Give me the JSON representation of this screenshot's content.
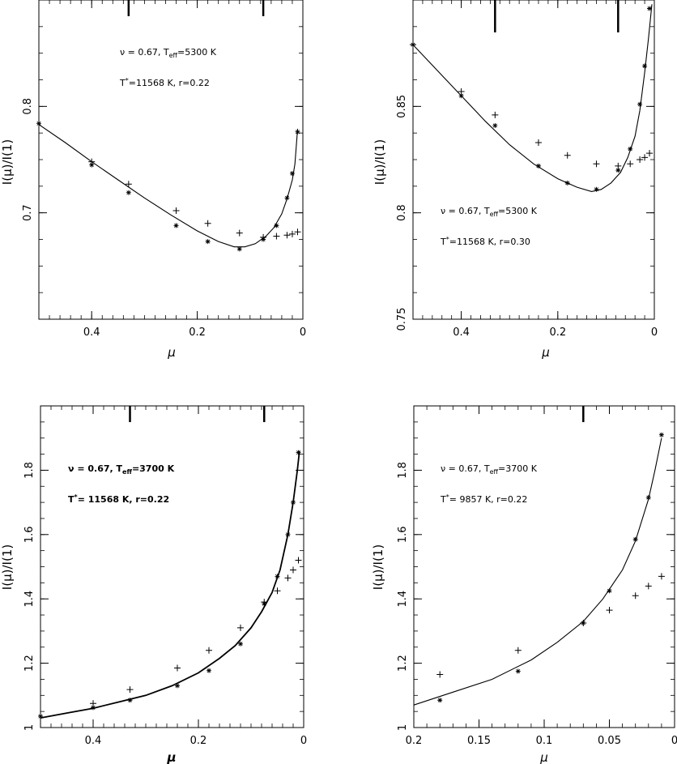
{
  "chart_data": [
    {
      "type": "scatter",
      "xlabel": "μ",
      "ylabel": "I(μ)/I(1)",
      "xlim": [
        0.5,
        0
      ],
      "ylim": [
        0.6,
        0.9
      ],
      "xticks": [
        "0.4",
        "0.2",
        "0"
      ],
      "yticks": [
        "0.7",
        "0.8"
      ],
      "annotations": [
        "ν  = 0.67, T_eff=5300 K",
        "T*=11568 K, r=0.22"
      ],
      "vertical_markers_x": [
        0.33,
        0.075
      ],
      "series": [
        {
          "marker": "curve",
          "x": [
            0.5,
            0.45,
            0.4,
            0.35,
            0.3,
            0.25,
            0.2,
            0.16,
            0.13,
            0.11,
            0.09,
            0.07,
            0.055,
            0.04,
            0.03,
            0.02,
            0.015,
            0.01
          ],
          "y": [
            0.783,
            0.766,
            0.748,
            0.731,
            0.714,
            0.698,
            0.683,
            0.673,
            0.668,
            0.668,
            0.671,
            0.678,
            0.686,
            0.699,
            0.713,
            0.731,
            0.746,
            0.779
          ]
        },
        {
          "marker": "asterisk",
          "x": [
            0.5,
            0.4,
            0.33,
            0.24,
            0.18,
            0.12,
            0.075,
            0.05,
            0.03,
            0.02,
            0.01
          ],
          "y": [
            0.784,
            0.745,
            0.719,
            0.688,
            0.673,
            0.666,
            0.675,
            0.688,
            0.714,
            0.737,
            0.776
          ]
        },
        {
          "marker": "plus",
          "x": [
            0.4,
            0.33,
            0.24,
            0.18,
            0.12,
            0.075,
            0.05,
            0.03,
            0.02,
            0.01
          ],
          "y": [
            0.748,
            0.727,
            0.702,
            0.69,
            0.681,
            0.677,
            0.678,
            0.679,
            0.68,
            0.682
          ]
        }
      ]
    },
    {
      "type": "scatter",
      "xlabel": "μ",
      "ylabel": "I(μ)/I(1)",
      "xlim": [
        0.5,
        0
      ],
      "ylim": [
        0.75,
        0.9
      ],
      "xticks": [
        "0.4",
        "0.2",
        "0"
      ],
      "yticks": [
        "0.75",
        "0.8",
        "0.85"
      ],
      "annotations": [
        "ν  = 0.67, T_eff=5300 K",
        "T*=11568 K, r=0.30"
      ],
      "vertical_markers_x": [
        0.33,
        0.075
      ],
      "series": [
        {
          "marker": "curve",
          "x": [
            0.5,
            0.45,
            0.4,
            0.35,
            0.3,
            0.25,
            0.2,
            0.16,
            0.13,
            0.11,
            0.09,
            0.07,
            0.055,
            0.04,
            0.03,
            0.02,
            0.012,
            0.005
          ],
          "y": [
            0.879,
            0.867,
            0.855,
            0.843,
            0.832,
            0.823,
            0.816,
            0.812,
            0.81,
            0.811,
            0.814,
            0.819,
            0.826,
            0.836,
            0.848,
            0.866,
            0.882,
            0.898
          ]
        },
        {
          "marker": "asterisk",
          "x": [
            0.5,
            0.4,
            0.33,
            0.24,
            0.18,
            0.12,
            0.075,
            0.05,
            0.03,
            0.02,
            0.01
          ],
          "y": [
            0.879,
            0.855,
            0.841,
            0.822,
            0.814,
            0.811,
            0.82,
            0.83,
            0.851,
            0.869,
            0.896
          ]
        },
        {
          "marker": "plus",
          "x": [
            0.5,
            0.4,
            0.33,
            0.24,
            0.18,
            0.12,
            0.075,
            0.05,
            0.03,
            0.02,
            0.01
          ],
          "y": [
            0.879,
            0.857,
            0.846,
            0.833,
            0.827,
            0.823,
            0.822,
            0.823,
            0.825,
            0.826,
            0.828
          ]
        }
      ]
    },
    {
      "type": "scatter",
      "xlabel": "μ",
      "ylabel": "I(μ)/I(1)",
      "xlim": [
        0.5,
        0
      ],
      "ylim": [
        1.0,
        2.0
      ],
      "xticks": [
        "0.4",
        "0.2",
        "0"
      ],
      "yticks": [
        "1",
        "1.2",
        "1.4",
        "1.6",
        "1.8"
      ],
      "annotations": [
        "ν  = 0.67, T_eff=3700 K",
        "T*= 11568 K, r=0.22"
      ],
      "vertical_markers_x": [
        0.33,
        0.075
      ],
      "series": [
        {
          "marker": "curve",
          "x": [
            0.5,
            0.45,
            0.4,
            0.35,
            0.3,
            0.25,
            0.2,
            0.16,
            0.13,
            0.1,
            0.08,
            0.06,
            0.045,
            0.03,
            0.02,
            0.012,
            0.008
          ],
          "y": [
            1.03,
            1.045,
            1.06,
            1.08,
            1.1,
            1.13,
            1.17,
            1.215,
            1.255,
            1.31,
            1.36,
            1.42,
            1.49,
            1.6,
            1.7,
            1.8,
            1.86
          ]
        },
        {
          "marker": "asterisk",
          "x": [
            0.5,
            0.4,
            0.33,
            0.24,
            0.18,
            0.12,
            0.075,
            0.05,
            0.03,
            0.02,
            0.01
          ],
          "y": [
            1.035,
            1.062,
            1.085,
            1.13,
            1.177,
            1.26,
            1.385,
            1.47,
            1.6,
            1.7,
            1.855
          ]
        },
        {
          "marker": "plus",
          "x": [
            0.4,
            0.33,
            0.24,
            0.18,
            0.12,
            0.075,
            0.05,
            0.03,
            0.02,
            0.01
          ],
          "y": [
            1.075,
            1.118,
            1.185,
            1.24,
            1.31,
            1.39,
            1.425,
            1.465,
            1.49,
            1.52
          ]
        }
      ]
    },
    {
      "type": "scatter",
      "xlabel": "μ",
      "ylabel": "I(μ)/I(1)",
      "xlim": [
        0.2,
        0
      ],
      "ylim": [
        1.0,
        2.0
      ],
      "xticks": [
        "0.2",
        "0.15",
        "0.1",
        "0.05",
        "0"
      ],
      "yticks": [
        "1",
        "1.2",
        "1.4",
        "1.6",
        "1.8"
      ],
      "annotations": [
        "ν  = 0.67, T_eff=3700 K",
        "T*= 9857 K, r=0.22"
      ],
      "vertical_markers_x": [
        0.07
      ],
      "series": [
        {
          "marker": "curve",
          "x": [
            0.2,
            0.17,
            0.14,
            0.11,
            0.09,
            0.07,
            0.055,
            0.04,
            0.03,
            0.02,
            0.015,
            0.01
          ],
          "y": [
            1.07,
            1.11,
            1.15,
            1.21,
            1.265,
            1.33,
            1.4,
            1.49,
            1.58,
            1.71,
            1.8,
            1.9
          ]
        },
        {
          "marker": "asterisk",
          "x": [
            0.18,
            0.12,
            0.07,
            0.05,
            0.03,
            0.02,
            0.01
          ],
          "y": [
            1.085,
            1.175,
            1.325,
            1.425,
            1.585,
            1.715,
            1.91
          ]
        },
        {
          "marker": "plus",
          "x": [
            0.18,
            0.12,
            0.07,
            0.05,
            0.03,
            0.02,
            0.01
          ],
          "y": [
            1.165,
            1.24,
            1.325,
            1.365,
            1.41,
            1.44,
            1.47
          ]
        }
      ]
    }
  ]
}
